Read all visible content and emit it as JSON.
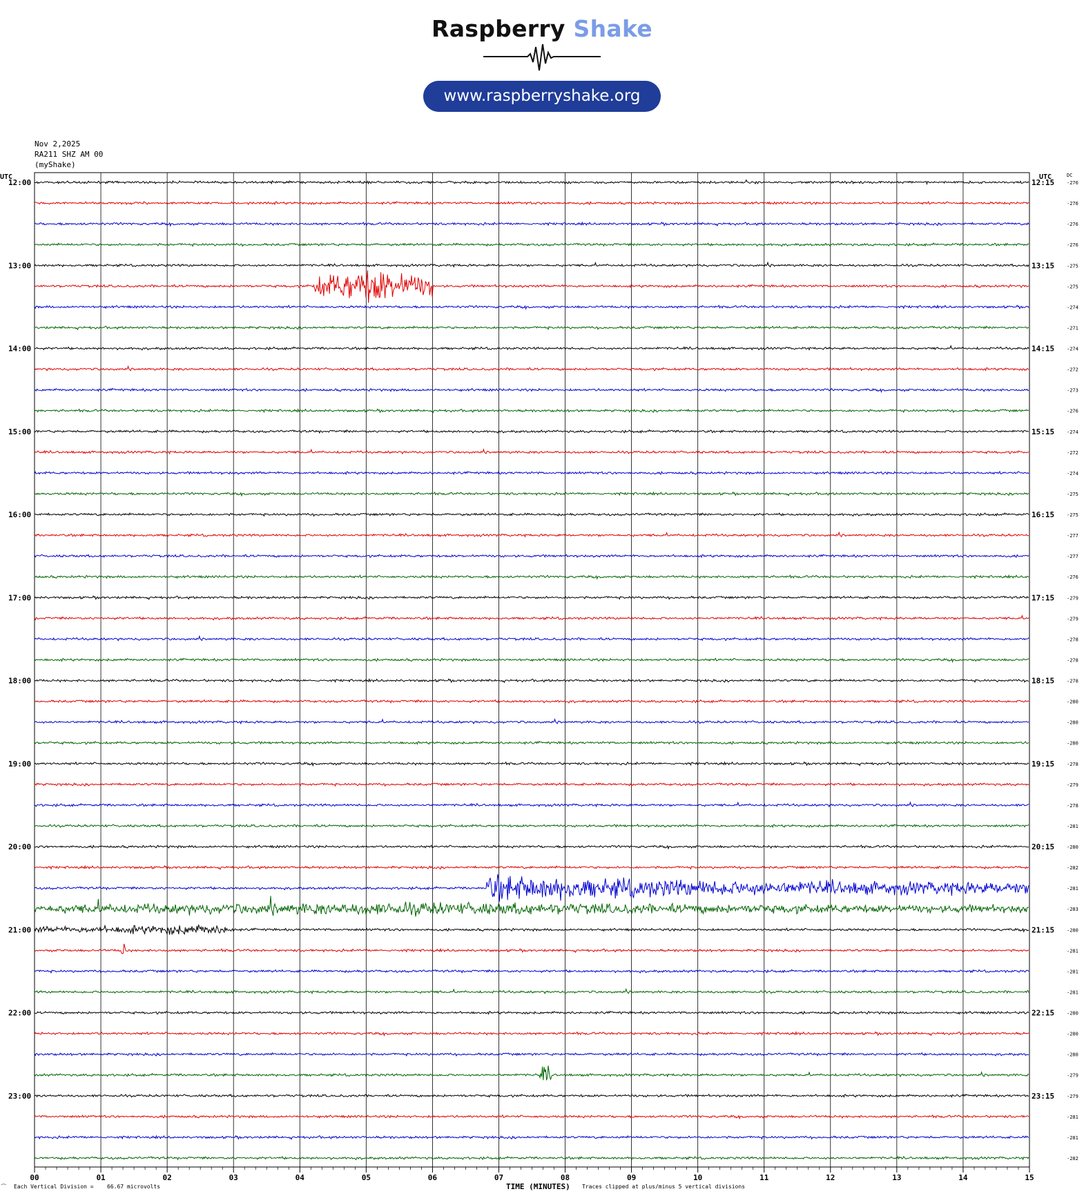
{
  "header": {
    "brand_part1": "Raspberry",
    "brand_part2": "Shake",
    "url": "www.raspberryshake.org",
    "date": "Nov 2,2025",
    "station": "RA211 SHZ AM 00",
    "network": "(myShake)"
  },
  "colors": {
    "brand_dark": "#111111",
    "brand_light": "#7b9ce6",
    "pill": "#1f3d99",
    "trace_cycle": [
      "#000000",
      "#e00000",
      "#0000d0",
      "#006400"
    ]
  },
  "chart_data": {
    "type": "line",
    "subtype": "helicorder",
    "xlabel": "TIME (MINUTES)",
    "x_ticks": [
      "00",
      "01",
      "02",
      "03",
      "04",
      "05",
      "06",
      "07",
      "08",
      "09",
      "10",
      "11",
      "12",
      "13",
      "14",
      "15"
    ],
    "xlim": [
      0,
      15
    ],
    "left_axis_title": "UTC",
    "right_axis_title": "UTC",
    "dc_title": "DC",
    "grid": true,
    "hour_labels": [
      "12:00",
      "13:00",
      "14:00",
      "15:00",
      "16:00",
      "17:00",
      "18:00",
      "19:00",
      "20:00",
      "21:00",
      "22:00",
      "23:00"
    ],
    "right_labels": [
      "12:15",
      "13:15",
      "14:15",
      "15:15",
      "16:15",
      "17:15",
      "18:15",
      "19:15",
      "20:15",
      "21:15",
      "22:15",
      "23:15"
    ],
    "dc_offsets": [
      "-276",
      "-276",
      "-276",
      "-276",
      "-275",
      "-275",
      "-274",
      "-271",
      "-274",
      "-272",
      "-273",
      "-276",
      "-274",
      "-272",
      "-274",
      "-275",
      "-275",
      "-277",
      "-277",
      "-276",
      "-279",
      "-279",
      "-278",
      "-278",
      "-278",
      "-280",
      "-280",
      "-280",
      "-278",
      "-279",
      "-278",
      "-281",
      "-280",
      "-282",
      "-281",
      "-283",
      "-280",
      "-281",
      "-281",
      "-281",
      "-280",
      "-280",
      "-280",
      "-279",
      "-279",
      "-281",
      "-281",
      "-282"
    ],
    "events": [
      {
        "line": 5,
        "start_min": 4.2,
        "end_min": 6.0,
        "peak_min": 5.1,
        "amplitude_div": 1.5
      },
      {
        "line": 34,
        "start_min": 6.8,
        "end_min": 15.0,
        "peak_min": 7.0,
        "amplitude_div": 1.0
      },
      {
        "line": 35,
        "start_min": 0.0,
        "end_min": 15.0,
        "peak_min": 5.7,
        "amplitude_div": 0.45
      },
      {
        "line": 36,
        "start_min": 0.0,
        "end_min": 3.0,
        "peak_min": 2.3,
        "amplitude_div": 0.35
      },
      {
        "line": 37,
        "start_min": 1.3,
        "end_min": 1.4,
        "peak_min": 1.35,
        "amplitude_div": 0.6
      },
      {
        "line": 43,
        "start_min": 7.6,
        "end_min": 7.8,
        "peak_min": 7.7,
        "amplitude_div": 0.7
      }
    ],
    "footer": {
      "scale_label": "Each Vertical Division =",
      "scale_value": "66.67 microvolts",
      "clip_note": "Traces clipped at plus/minus 5 vertical divisions"
    }
  }
}
